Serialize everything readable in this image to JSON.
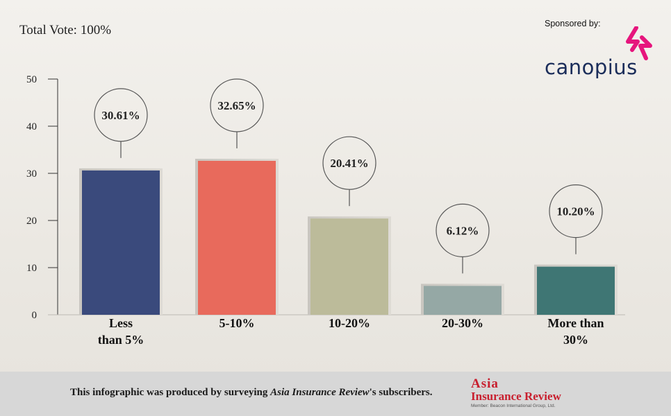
{
  "header": {
    "total_vote": "Total Vote: 100%",
    "sponsor_label": "Sponsored by:",
    "sponsor_name": "canopius"
  },
  "colors": {
    "sponsor_logo": "#e6157d",
    "sponsor_text": "#1b2d5a",
    "publisher": "#c8202f",
    "footer_bg": "#d7d7d7"
  },
  "chart_data": {
    "type": "bar",
    "categories": [
      [
        "Less",
        "than 5%"
      ],
      [
        "5-10%"
      ],
      [
        "10-20%"
      ],
      [
        "20-30%"
      ],
      [
        "More than",
        "30%"
      ]
    ],
    "values": [
      30.61,
      32.65,
      20.41,
      6.12,
      10.2
    ],
    "value_labels": [
      "30.61%",
      "32.65%",
      "20.41%",
      "6.12%",
      "10.20%"
    ],
    "bar_colors": [
      "#3a4a7c",
      "#e86a5c",
      "#bcbb9a",
      "#95a8a5",
      "#3f7674"
    ],
    "ylim": [
      0,
      50
    ],
    "yticks": [
      0,
      10,
      20,
      30,
      40,
      50
    ],
    "title": "",
    "xlabel": "",
    "ylabel": "",
    "grid": false
  },
  "footer": {
    "note_prefix": "This infographic was produced by surveying ",
    "note_italic": "Asia Insurance Review",
    "note_suffix": "'s subscribers.",
    "publisher_line1": "Asia",
    "publisher_line2": "Insurance Review",
    "publisher_sub": "Member: Beacon International Group, Ltd."
  }
}
